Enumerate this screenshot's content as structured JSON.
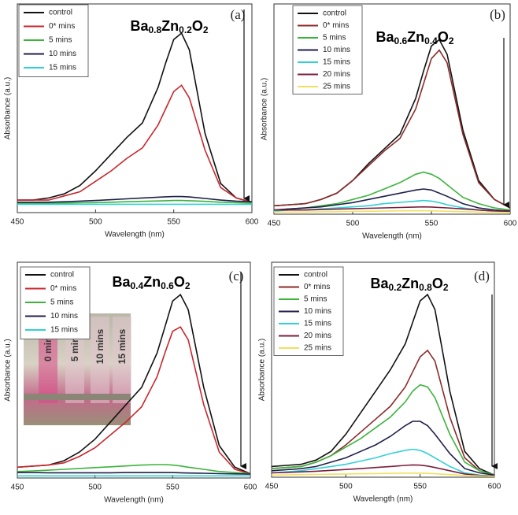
{
  "chart_data": [
    {
      "type": "line",
      "title": "Ba0.8Zn0.2O2",
      "panel_label": "(a)",
      "xlabel": "Wavelength (nm)",
      "ylabel": "Absorbance (a.u.)",
      "x": [
        450,
        460,
        470,
        480,
        490,
        500,
        510,
        520,
        530,
        540,
        545,
        550,
        555,
        560,
        570,
        580,
        590,
        600
      ],
      "xlim": [
        450,
        600
      ],
      "xticks": [
        450,
        500,
        550,
        600
      ],
      "ylim": [
        0,
        1
      ],
      "series": [
        {
          "name": "control",
          "color": "#111111",
          "values": [
            0.06,
            0.06,
            0.07,
            0.09,
            0.13,
            0.2,
            0.28,
            0.36,
            0.43,
            0.6,
            0.72,
            0.83,
            0.86,
            0.78,
            0.38,
            0.14,
            0.07,
            0.05
          ]
        },
        {
          "name": "0* mins",
          "color": "#c8272d",
          "values": [
            0.06,
            0.06,
            0.06,
            0.08,
            0.1,
            0.15,
            0.2,
            0.26,
            0.31,
            0.42,
            0.5,
            0.58,
            0.61,
            0.55,
            0.3,
            0.12,
            0.07,
            0.05
          ]
        },
        {
          "name": "5 mins",
          "color": "#3cb43c",
          "values": [
            0.045,
            0.045,
            0.045,
            0.046,
            0.047,
            0.048,
            0.05,
            0.052,
            0.054,
            0.056,
            0.057,
            0.058,
            0.058,
            0.057,
            0.054,
            0.05,
            0.048,
            0.046
          ]
        },
        {
          "name": "10 mins",
          "color": "#1f1f4a",
          "values": [
            0.05,
            0.05,
            0.05,
            0.052,
            0.055,
            0.058,
            0.062,
            0.066,
            0.07,
            0.074,
            0.076,
            0.077,
            0.077,
            0.075,
            0.068,
            0.06,
            0.055,
            0.052
          ]
        },
        {
          "name": "15 mins",
          "color": "#30d0d8",
          "values": [
            0.04,
            0.04,
            0.04,
            0.04,
            0.04,
            0.04,
            0.04,
            0.04,
            0.04,
            0.04,
            0.04,
            0.04,
            0.04,
            0.04,
            0.04,
            0.04,
            0.04,
            0.04
          ]
        }
      ]
    },
    {
      "type": "line",
      "title": "Ba0.6Zn0.4O2",
      "panel_label": "(b)",
      "xlabel": "Wavelength (nm)",
      "ylabel": "Absorbance (a.u.)",
      "x": [
        450,
        460,
        470,
        480,
        490,
        500,
        510,
        520,
        530,
        540,
        545,
        550,
        555,
        560,
        570,
        580,
        590,
        600
      ],
      "xlim": [
        450,
        600
      ],
      "xticks": [
        450,
        500,
        550,
        600
      ],
      "ylim": [
        0,
        1
      ],
      "series": [
        {
          "name": "control",
          "color": "#111111",
          "values": [
            0.04,
            0.045,
            0.05,
            0.07,
            0.1,
            0.16,
            0.24,
            0.31,
            0.38,
            0.55,
            0.68,
            0.8,
            0.83,
            0.76,
            0.4,
            0.16,
            0.07,
            0.03
          ]
        },
        {
          "name": "0* mins",
          "color": "#8b2a2a",
          "values": [
            0.04,
            0.045,
            0.05,
            0.07,
            0.1,
            0.16,
            0.23,
            0.3,
            0.36,
            0.5,
            0.62,
            0.74,
            0.78,
            0.72,
            0.38,
            0.15,
            0.07,
            0.03
          ]
        },
        {
          "name": "5 mins",
          "color": "#3cb43c",
          "values": [
            0.02,
            0.025,
            0.03,
            0.04,
            0.05,
            0.07,
            0.09,
            0.12,
            0.15,
            0.19,
            0.2,
            0.19,
            0.17,
            0.14,
            0.08,
            0.05,
            0.03,
            0.02
          ]
        },
        {
          "name": "10 mins",
          "color": "#1f1f4a",
          "values": [
            0.02,
            0.025,
            0.03,
            0.035,
            0.045,
            0.055,
            0.07,
            0.085,
            0.1,
            0.115,
            0.12,
            0.115,
            0.1,
            0.085,
            0.05,
            0.03,
            0.02,
            0.015
          ]
        },
        {
          "name": "15 mins",
          "color": "#30d0d8",
          "values": [
            0.015,
            0.02,
            0.02,
            0.025,
            0.03,
            0.035,
            0.04,
            0.05,
            0.056,
            0.062,
            0.065,
            0.062,
            0.055,
            0.045,
            0.03,
            0.02,
            0.015,
            0.01
          ]
        },
        {
          "name": "20 mins",
          "color": "#7a1f3d",
          "values": [
            0.02,
            0.02,
            0.02,
            0.022,
            0.024,
            0.026,
            0.028,
            0.03,
            0.032,
            0.034,
            0.035,
            0.034,
            0.032,
            0.03,
            0.025,
            0.02,
            0.015,
            0.012
          ]
        },
        {
          "name": "25 mins",
          "color": "#f0e060",
          "values": [
            0.01,
            0.01,
            0.01,
            0.011,
            0.012,
            0.013,
            0.014,
            0.015,
            0.016,
            0.016,
            0.016,
            0.016,
            0.015,
            0.014,
            0.012,
            0.01,
            0.009,
            0.008
          ]
        }
      ]
    },
    {
      "type": "line",
      "title": "Ba0.4Zn0.6O2",
      "panel_label": "(c)",
      "xlabel": "Wavelength (nm)",
      "ylabel": "Absorbance (a.u.)",
      "x": [
        450,
        460,
        470,
        480,
        490,
        500,
        510,
        520,
        530,
        540,
        545,
        550,
        555,
        560,
        570,
        580,
        590,
        600
      ],
      "xlim": [
        450,
        600
      ],
      "xticks": [
        450,
        500,
        550,
        600
      ],
      "ylim": [
        0,
        1
      ],
      "inset_labels": [
        "0 mins",
        "5 mins",
        "10 mins",
        "15 mins"
      ],
      "series": [
        {
          "name": "control",
          "color": "#111111",
          "values": [
            0.05,
            0.055,
            0.06,
            0.08,
            0.12,
            0.18,
            0.26,
            0.34,
            0.42,
            0.58,
            0.7,
            0.82,
            0.85,
            0.78,
            0.42,
            0.15,
            0.05,
            0.02
          ]
        },
        {
          "name": "0* mins",
          "color": "#c8272d",
          "values": [
            0.05,
            0.055,
            0.06,
            0.07,
            0.1,
            0.14,
            0.2,
            0.26,
            0.33,
            0.47,
            0.58,
            0.68,
            0.7,
            0.64,
            0.34,
            0.12,
            0.04,
            0.02
          ]
        },
        {
          "name": "5 mins",
          "color": "#3cb43c",
          "values": [
            0.03,
            0.033,
            0.036,
            0.04,
            0.044,
            0.048,
            0.052,
            0.056,
            0.06,
            0.062,
            0.062,
            0.06,
            0.056,
            0.05,
            0.04,
            0.03,
            0.025,
            0.02
          ]
        },
        {
          "name": "10 mins",
          "color": "#1f1f4a",
          "values": [
            0.025,
            0.025,
            0.024,
            0.024,
            0.024,
            0.024,
            0.024,
            0.025,
            0.025,
            0.025,
            0.025,
            0.025,
            0.024,
            0.023,
            0.022,
            0.02,
            0.019,
            0.018
          ]
        },
        {
          "name": "15 mins",
          "color": "#30d0d8",
          "values": [
            0.01,
            0.01,
            0.01,
            0.01,
            0.01,
            0.01,
            0.01,
            0.01,
            0.01,
            0.01,
            0.01,
            0.01,
            0.01,
            0.01,
            0.01,
            0.01,
            0.01,
            0.01
          ]
        }
      ]
    },
    {
      "type": "line",
      "title": "Ba0.2Zn0.8O2",
      "panel_label": "(d)",
      "xlabel": "Wavelength (nm)",
      "ylabel": "Absorbance (a.u.)",
      "x": [
        450,
        460,
        470,
        480,
        490,
        500,
        510,
        520,
        530,
        540,
        545,
        550,
        555,
        560,
        570,
        580,
        590,
        600
      ],
      "xlim": [
        450,
        600
      ],
      "xticks": [
        450,
        500,
        550,
        600
      ],
      "ylim": [
        0,
        1
      ],
      "series": [
        {
          "name": "control",
          "color": "#111111",
          "values": [
            0.05,
            0.055,
            0.06,
            0.08,
            0.12,
            0.2,
            0.3,
            0.4,
            0.5,
            0.62,
            0.72,
            0.82,
            0.85,
            0.78,
            0.4,
            0.12,
            0.04,
            0.01
          ]
        },
        {
          "name": "0* mins",
          "color": "#8b2a2a",
          "values": [
            0.04,
            0.045,
            0.05,
            0.07,
            0.1,
            0.15,
            0.21,
            0.27,
            0.33,
            0.42,
            0.49,
            0.56,
            0.59,
            0.54,
            0.28,
            0.09,
            0.03,
            0.01
          ]
        },
        {
          "name": "5 mins",
          "color": "#3cb43c",
          "values": [
            0.04,
            0.045,
            0.05,
            0.07,
            0.1,
            0.14,
            0.18,
            0.23,
            0.28,
            0.35,
            0.4,
            0.43,
            0.42,
            0.37,
            0.2,
            0.07,
            0.03,
            0.01
          ]
        },
        {
          "name": "10 mins",
          "color": "#1f1f4a",
          "values": [
            0.03,
            0.035,
            0.04,
            0.05,
            0.07,
            0.09,
            0.12,
            0.15,
            0.19,
            0.24,
            0.26,
            0.26,
            0.24,
            0.2,
            0.11,
            0.04,
            0.02,
            0.01
          ]
        },
        {
          "name": "15 mins",
          "color": "#30d0d8",
          "values": [
            0.02,
            0.025,
            0.03,
            0.04,
            0.05,
            0.06,
            0.075,
            0.09,
            0.11,
            0.125,
            0.13,
            0.125,
            0.11,
            0.09,
            0.05,
            0.02,
            0.01,
            0.005
          ]
        },
        {
          "name": "20 mins",
          "color": "#7a1f3d",
          "values": [
            0.02,
            0.022,
            0.025,
            0.028,
            0.032,
            0.036,
            0.04,
            0.045,
            0.05,
            0.055,
            0.057,
            0.056,
            0.052,
            0.045,
            0.03,
            0.015,
            0.008,
            0.005
          ]
        },
        {
          "name": "25 mins",
          "color": "#f0e060",
          "values": [
            0.01,
            0.011,
            0.012,
            0.013,
            0.014,
            0.015,
            0.016,
            0.017,
            0.018,
            0.019,
            0.019,
            0.019,
            0.018,
            0.016,
            0.012,
            0.008,
            0.006,
            0.004
          ]
        }
      ]
    }
  ]
}
